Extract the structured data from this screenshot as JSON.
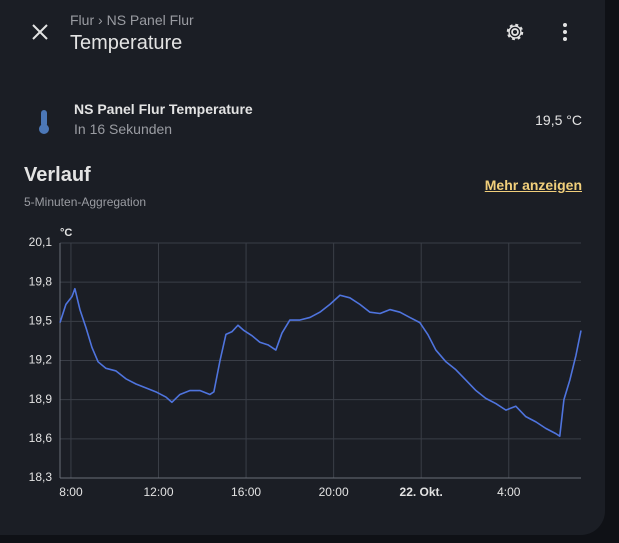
{
  "header": {
    "breadcrumb": [
      "Flur",
      "NS Panel Flur"
    ],
    "title": "Temperature"
  },
  "entity": {
    "name": "NS Panel Flur Temperature",
    "secondary": "In 16 Sekunden",
    "state": "19,5 °C"
  },
  "history": {
    "title": "Verlauf",
    "subtitle": "5-Minuten-Aggregation",
    "link": "Mehr anzeigen"
  },
  "chart_data": {
    "type": "line",
    "y_label": "°C",
    "x": [
      7.5,
      7.77,
      8.05,
      8.18,
      8.41,
      8.69,
      8.96,
      9.24,
      9.6,
      10.06,
      10.51,
      10.97,
      11.42,
      11.88,
      12.34,
      12.61,
      12.98,
      13.44,
      13.89,
      14.35,
      14.53,
      14.81,
      15.08,
      15.35,
      15.63,
      15.9,
      16.27,
      16.63,
      17.0,
      17.36,
      17.64,
      18.0,
      18.46,
      18.92,
      19.37,
      19.83,
      20.29,
      20.74,
      21.2,
      21.66,
      22.12,
      22.57,
      23.03,
      23.48,
      23.94,
      24.3,
      24.67,
      25.13,
      25.58,
      26.04,
      26.5,
      26.95,
      27.41,
      27.87,
      28.32,
      28.78,
      29.24,
      29.69,
      30.15,
      30.33,
      30.52,
      30.79,
      31.07,
      31.3
    ],
    "series": [
      {
        "name": "NS Panel Flur Temperature",
        "color": "#4f74de",
        "values": [
          19.49,
          19.63,
          19.69,
          19.75,
          19.59,
          19.45,
          19.3,
          19.19,
          19.14,
          19.12,
          19.06,
          19.02,
          18.99,
          18.96,
          18.92,
          18.88,
          18.94,
          18.97,
          18.97,
          18.94,
          18.96,
          19.2,
          19.4,
          19.42,
          19.47,
          19.43,
          19.39,
          19.34,
          19.32,
          19.28,
          19.41,
          19.51,
          19.51,
          19.53,
          19.57,
          19.63,
          19.7,
          19.68,
          19.63,
          19.57,
          19.56,
          19.59,
          19.57,
          19.53,
          19.49,
          19.4,
          19.28,
          19.19,
          19.13,
          19.05,
          18.97,
          18.91,
          18.87,
          18.82,
          18.85,
          18.77,
          18.73,
          18.68,
          18.64,
          18.62,
          18.9,
          19.05,
          19.24,
          19.43
        ]
      }
    ],
    "xlim": [
      7.5,
      31.3
    ],
    "xticks": [
      {
        "value": 8,
        "label": "8:00"
      },
      {
        "value": 12,
        "label": "12:00"
      },
      {
        "value": 16,
        "label": "16:00"
      },
      {
        "value": 20,
        "label": "20:00"
      },
      {
        "value": 24,
        "label": "22. Okt."
      },
      {
        "value": 28,
        "label": "4:00"
      }
    ],
    "ylim": [
      18.3,
      20.1
    ],
    "yticks": [
      {
        "value": 18.3,
        "label": "18,3"
      },
      {
        "value": 18.6,
        "label": "18,6"
      },
      {
        "value": 18.9,
        "label": "18,9"
      },
      {
        "value": 19.2,
        "label": "19,2"
      },
      {
        "value": 19.5,
        "label": "19,5"
      },
      {
        "value": 19.8,
        "label": "19,8"
      },
      {
        "value": 20.1,
        "label": "20,1"
      }
    ],
    "grid": true
  }
}
